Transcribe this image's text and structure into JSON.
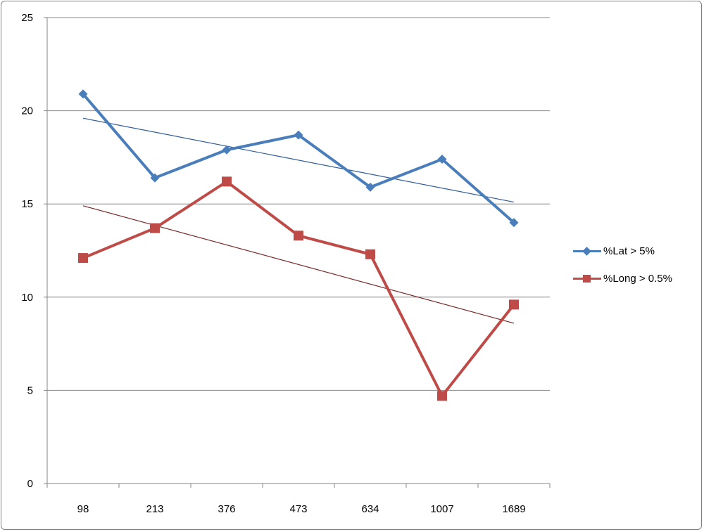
{
  "chart_data": {
    "type": "line",
    "title": "",
    "xlabel": "",
    "ylabel": "",
    "categories": [
      "98",
      "213",
      "376",
      "473",
      "634",
      "1007",
      "1689"
    ],
    "ylim": [
      0,
      25
    ],
    "yticks": [
      "0",
      "5",
      "10",
      "15",
      "20",
      "25"
    ],
    "grid": "horizontal",
    "legend_position": "right",
    "series": [
      {
        "name": "%Lat > 5%",
        "color": "#4a7ebb",
        "marker": "diamond",
        "values": [
          20.9,
          16.4,
          17.9,
          18.7,
          15.9,
          17.4,
          14.0
        ],
        "trendline": {
          "start": 19.6,
          "end": 15.1,
          "color": "#2e5c9a"
        }
      },
      {
        "name": "%Long > 0.5%",
        "color": "#be4b48",
        "marker": "square",
        "values": [
          12.1,
          13.7,
          16.2,
          13.3,
          12.3,
          4.7,
          9.6
        ],
        "trendline": {
          "start": 14.9,
          "end": 8.6,
          "color": "#7a2a2a"
        }
      }
    ]
  }
}
